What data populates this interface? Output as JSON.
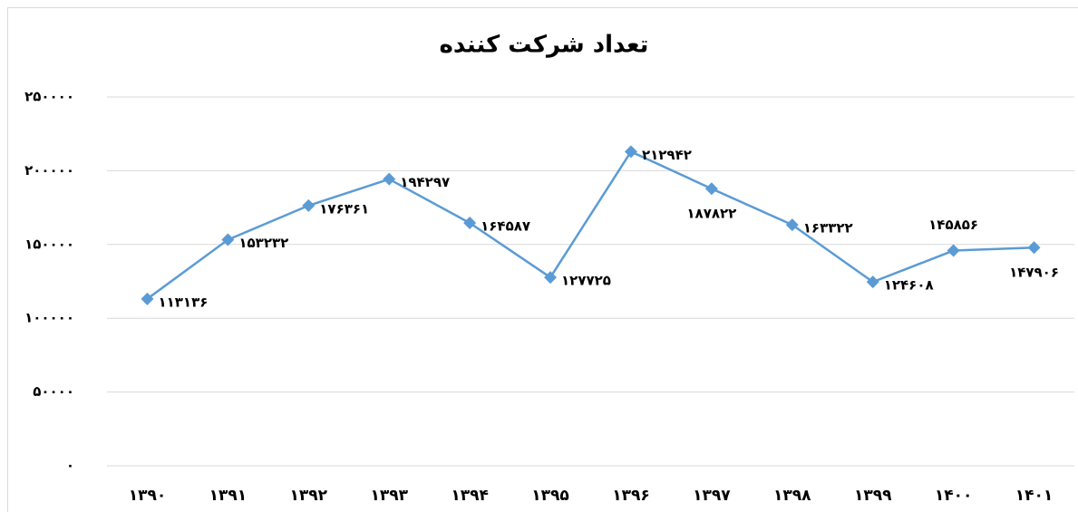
{
  "chart_data": {
    "type": "line",
    "title": "تعداد شرکت کننده",
    "categories": [
      "۱۳۹۰",
      "۱۳۹۱",
      "۱۳۹۲",
      "۱۳۹۳",
      "۱۳۹۴",
      "۱۳۹۵",
      "۱۳۹۶",
      "۱۳۹۷",
      "۱۳۹۸",
      "۱۳۹۹",
      "۱۴۰۰",
      "۱۴۰۱"
    ],
    "series": [
      {
        "color": "#5b9bd5",
        "values": [
          113136,
          153232,
          176361,
          194297,
          164587,
          127725,
          212942,
          187822,
          163322,
          124608,
          145856,
          147906
        ],
        "value_labels": [
          "۱۱۳۱۳۶",
          "۱۵۳۲۳۲",
          "۱۷۶۳۶۱",
          "۱۹۴۲۹۷",
          "۱۶۴۵۸۷",
          "۱۲۷۷۲۵",
          "۲۱۲۹۴۲",
          "۱۸۷۸۲۲",
          "۱۶۳۳۲۲",
          "۱۲۴۶۰۸",
          "۱۴۵۸۵۶",
          "۱۴۷۹۰۶"
        ]
      }
    ],
    "ylim": [
      0,
      250000
    ],
    "yticks": [
      {
        "value": 0,
        "label": "۰"
      },
      {
        "value": 50000,
        "label": "۵۰۰۰۰"
      },
      {
        "value": 100000,
        "label": "۱۰۰۰۰۰"
      },
      {
        "value": 150000,
        "label": "۱۵۰۰۰۰"
      },
      {
        "value": 200000,
        "label": "۲۰۰۰۰۰"
      },
      {
        "value": 250000,
        "label": "۲۵۰۰۰۰"
      }
    ],
    "grid": true
  }
}
